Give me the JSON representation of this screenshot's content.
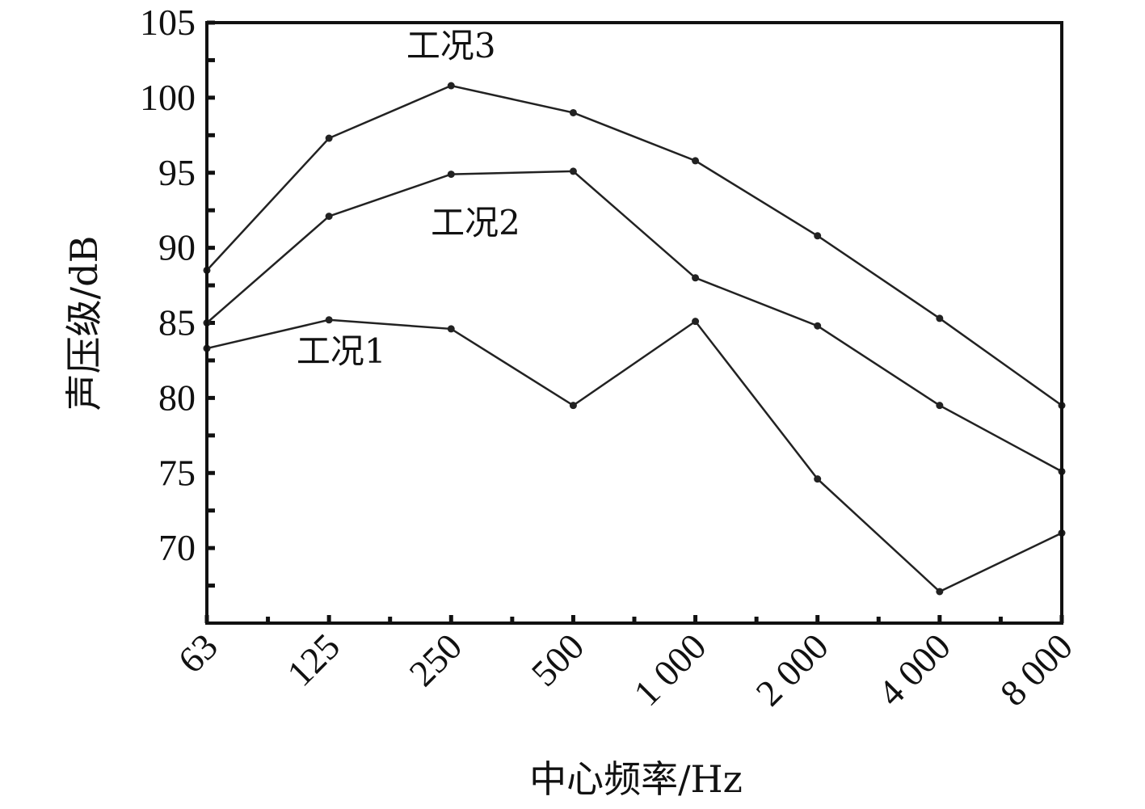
{
  "chart_data": {
    "type": "line",
    "x_scale": "log2",
    "categories": [
      "63",
      "125",
      "250",
      "500",
      "1 000",
      "2 000",
      "4 000",
      "8 000"
    ],
    "x": [
      63,
      125,
      250,
      500,
      1000,
      2000,
      4000,
      8000
    ],
    "xlabel": "中心频率/Hz",
    "ylabel": "声压级/dB",
    "ylim": [
      65,
      105
    ],
    "yticks": [
      70,
      75,
      80,
      85,
      90,
      95,
      100,
      105
    ],
    "grid": false,
    "legend": "none",
    "series": [
      {
        "name": "工况1",
        "values": [
          83.3,
          85.2,
          84.6,
          79.5,
          85.1,
          74.6,
          67.1,
          71.0
        ]
      },
      {
        "name": "工况2",
        "values": [
          85.0,
          92.1,
          94.9,
          95.1,
          88.0,
          84.8,
          79.5,
          75.1
        ]
      },
      {
        "name": "工况3",
        "values": [
          88.5,
          97.3,
          100.8,
          99.0,
          95.8,
          90.8,
          85.3,
          79.5
        ]
      }
    ]
  }
}
